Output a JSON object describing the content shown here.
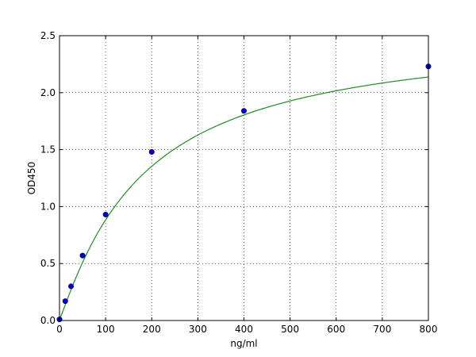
{
  "chart_data": {
    "type": "scatter",
    "title": "",
    "xlabel": "ng/ml",
    "ylabel": "OD450",
    "xlim": [
      0,
      800
    ],
    "ylim": [
      0,
      2.5
    ],
    "xticks": [
      0,
      100,
      200,
      300,
      400,
      500,
      600,
      700,
      800
    ],
    "xtick_labels": [
      "0",
      "100",
      "200",
      "300",
      "400",
      "500",
      "600",
      "700",
      "800"
    ],
    "yticks": [
      0,
      0.5,
      1.0,
      1.5,
      2.0,
      2.5
    ],
    "ytick_labels": [
      "0.0",
      "0.5",
      "1.0",
      "1.5",
      "2.0",
      "2.5"
    ],
    "grid": true,
    "series": [
      {
        "kind": "points",
        "color": "#0000cc",
        "points": [
          [
            0,
            0.01
          ],
          [
            12.5,
            0.17
          ],
          [
            25,
            0.3
          ],
          [
            50,
            0.57
          ],
          [
            100,
            0.93
          ],
          [
            200,
            1.48
          ],
          [
            400,
            1.84
          ],
          [
            800,
            2.23
          ]
        ]
      },
      {
        "kind": "fit-curve",
        "color": "#228b22",
        "model": "4PL",
        "params": {
          "A": 0.01,
          "B": 1.1,
          "C": 180,
          "D": 2.55
        }
      }
    ]
  }
}
